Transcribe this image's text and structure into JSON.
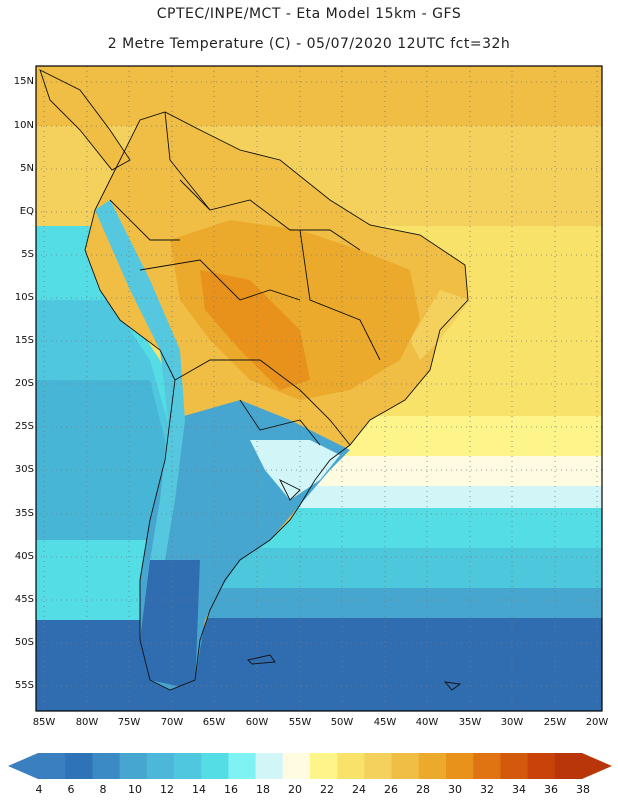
{
  "header": {
    "line1": "CPTEC/INPE/MCT -  Eta Model 15km - GFS",
    "line2": "2 Metre Temperature (C) - 05/07/2020 12UTC fct=32h"
  },
  "map": {
    "latitude_labels": [
      "15N",
      "10N",
      "5N",
      "EQ",
      "5S",
      "10S",
      "15S",
      "20S",
      "25S",
      "30S",
      "35S",
      "40S",
      "45S",
      "50S",
      "55S"
    ],
    "longitude_labels": [
      "85W",
      "80W",
      "75W",
      "70W",
      "65W",
      "60W",
      "55W",
      "50W",
      "45W",
      "40W",
      "35W",
      "30W",
      "25W",
      "20W"
    ]
  },
  "colorbar": {
    "labels": [
      "4",
      "6",
      "8",
      "10",
      "12",
      "14",
      "16",
      "18",
      "20",
      "22",
      "24",
      "26",
      "28",
      "30",
      "32",
      "34",
      "36",
      "38"
    ],
    "colors": [
      "#3a7fc0",
      "#2e73b7",
      "#3b8ac5",
      "#47a6cf",
      "#4db7d9",
      "#4fc8df",
      "#55dde5",
      "#7ff3f3",
      "#d2f6f8",
      "#fffbe0",
      "#fdf48a",
      "#f9e26a",
      "#f4d05c",
      "#f0bd45",
      "#ebaa2c",
      "#e8921c",
      "#e07412",
      "#d35a0c",
      "#c9420a",
      "#b8360a"
    ],
    "left_arrow_color": "#3a7fc0",
    "right_arrow_color": "#b8360a"
  }
}
